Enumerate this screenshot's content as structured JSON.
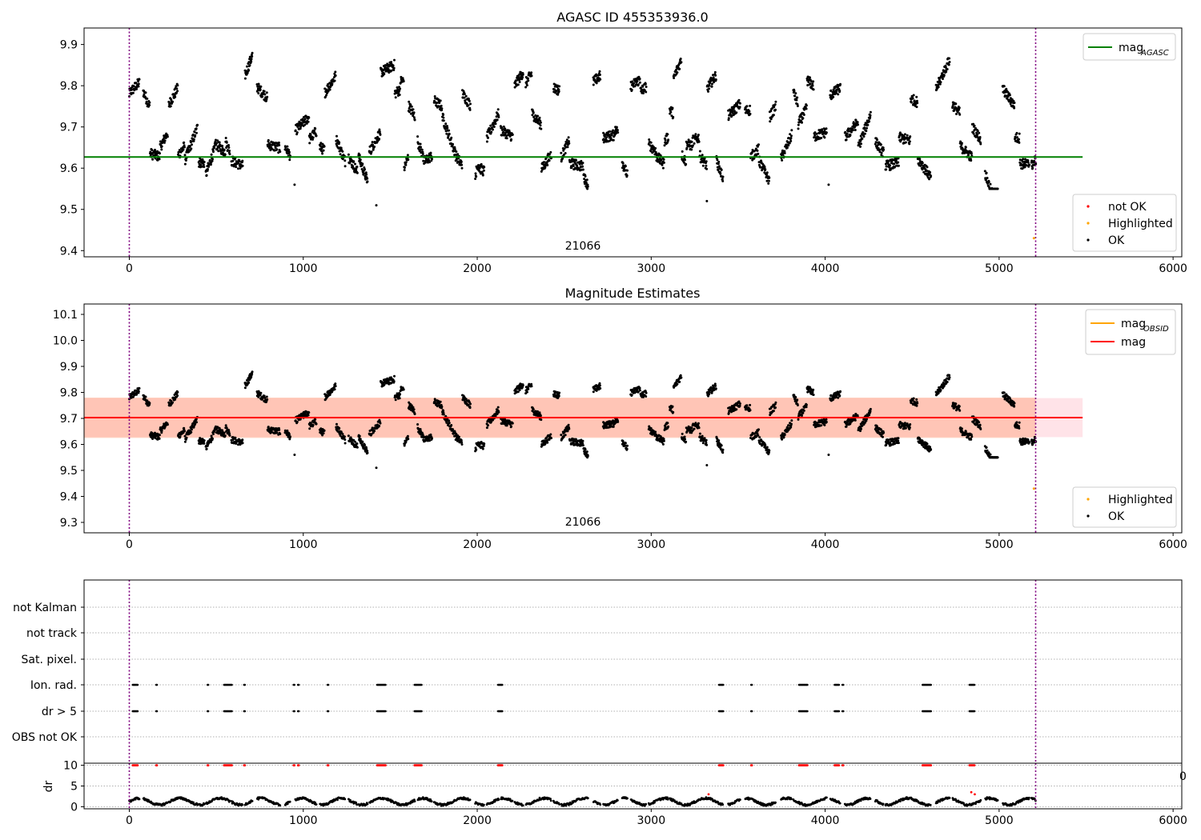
{
  "chart_data": [
    {
      "type": "scatter",
      "title": "AGASC ID 455353936.0",
      "xlabel": "",
      "ylabel": "",
      "xlim": [
        -260,
        6050
      ],
      "ylim": [
        9.385,
        9.94
      ],
      "xticks": [
        0,
        1000,
        2000,
        3000,
        4000,
        5000,
        6000
      ],
      "xtick_labels": [
        "0",
        "1000",
        "2000",
        "3000",
        "4000",
        "5000",
        "6000"
      ],
      "yticks": [
        9.4,
        9.5,
        9.6,
        9.7,
        9.8,
        9.9
      ],
      "ytick_labels": [
        "9.4",
        "9.5",
        "9.6",
        "9.7",
        "9.8",
        "9.9"
      ],
      "grid": false,
      "vertical_lines": [
        0,
        5210
      ],
      "lines": [
        {
          "name": "mag",
          "subscript": "AGASC",
          "color": "#008000",
          "y": 9.627,
          "x": [
            -260,
            5480
          ]
        }
      ],
      "band": null,
      "annotation": {
        "text": "21066",
        "x": 2600
      },
      "series": [
        {
          "name": "not OK",
          "color": "#ff0000",
          "points": []
        },
        {
          "name": "Highlighted",
          "color": "#ffa500",
          "points": [
            [
              5200,
              9.43
            ]
          ]
        },
        {
          "name": "OK",
          "color": "#000000",
          "y_range": [
            9.55,
            9.89
          ],
          "outliers": [
            [
              1420,
              9.51
            ],
            [
              3320,
              9.52
            ],
            [
              4020,
              9.56
            ],
            [
              950,
              9.56
            ]
          ]
        }
      ],
      "legend_lines": [
        {
          "label": "mag",
          "subscript": "AGASC",
          "color": "#008000"
        }
      ],
      "legend_points": [
        {
          "label": "not OK",
          "color": "#ff0000"
        },
        {
          "label": "Highlighted",
          "color": "#ffa500"
        },
        {
          "label": "OK",
          "color": "#000000"
        }
      ],
      "legend_lines_placement": "top-right",
      "legend_points_placement": "bottom-right"
    },
    {
      "type": "scatter",
      "title": "Magnitude Estimates",
      "xlabel": "",
      "ylabel": "",
      "xlim": [
        -260,
        6050
      ],
      "ylim": [
        9.26,
        10.14
      ],
      "xticks": [
        0,
        1000,
        2000,
        3000,
        4000,
        5000,
        6000
      ],
      "xtick_labels": [
        "0",
        "1000",
        "2000",
        "3000",
        "4000",
        "5000",
        "6000"
      ],
      "yticks": [
        9.3,
        9.4,
        9.5,
        9.6,
        9.7,
        9.8,
        9.9,
        10.0,
        10.1
      ],
      "ytick_labels": [
        "9.3",
        "9.4",
        "9.5",
        "9.6",
        "9.7",
        "9.8",
        "9.9",
        "10.0",
        "10.1"
      ],
      "grid": false,
      "vertical_lines": [
        0,
        5210
      ],
      "lines": [
        {
          "name": "mag",
          "color": "#ff0000",
          "y": 9.703,
          "x": [
            -260,
            5480
          ]
        }
      ],
      "bands": [
        {
          "color": "#ffa07a",
          "alpha": 0.45,
          "y": [
            9.625,
            9.78
          ],
          "x": [
            -260,
            5210
          ]
        },
        {
          "color": "#ffc0cb",
          "alpha": 0.45,
          "y": [
            9.628,
            9.778
          ],
          "x": [
            -260,
            5480
          ]
        }
      ],
      "annotation": {
        "text": "21066",
        "x": 2600
      },
      "series": [
        {
          "name": "Highlighted",
          "color": "#ffa500",
          "points": [
            [
              5200,
              9.43
            ]
          ]
        },
        {
          "name": "OK",
          "color": "#000000",
          "y_range": [
            9.55,
            9.89
          ],
          "outliers": [
            [
              1420,
              9.51
            ],
            [
              3320,
              9.52
            ],
            [
              4020,
              9.56
            ],
            [
              950,
              9.56
            ]
          ]
        }
      ],
      "legend_lines": [
        {
          "label": "mag",
          "subscript": "OBSID",
          "color": "#ffa500"
        },
        {
          "label": "mag",
          "subscript": "",
          "color": "#ff0000"
        }
      ],
      "legend_points": [
        {
          "label": "Highlighted",
          "color": "#ffa500"
        },
        {
          "label": "OK",
          "color": "#000000"
        }
      ],
      "legend_lines_placement": "top-right",
      "legend_points_placement": "bottom-right"
    },
    {
      "type": "scatter",
      "title": "",
      "xlabel": "",
      "ylabel": "",
      "xlim": [
        -260,
        6050
      ],
      "categories": [
        "not Kalman",
        "not track",
        "Sat. pixel.",
        "Ion. rad.",
        "dr > 5",
        "OBS not OK"
      ],
      "grid": "horizontal-dotted",
      "vertical_lines": [
        0,
        5210
      ],
      "flag_segments": {
        "Ion. rad.": [
          [
            20,
            50
          ],
          [
            155,
            160
          ],
          [
            450,
            455
          ],
          [
            545,
            590
          ],
          [
            660,
            665
          ],
          [
            945,
            950
          ],
          [
            970,
            975
          ],
          [
            1140,
            1145
          ],
          [
            1425,
            1475
          ],
          [
            1640,
            1680
          ],
          [
            2120,
            2145
          ],
          [
            3390,
            3415
          ],
          [
            3575,
            3580
          ],
          [
            3850,
            3900
          ],
          [
            4055,
            4080
          ],
          [
            4100,
            4105
          ],
          [
            4560,
            4610
          ],
          [
            4830,
            4860
          ]
        ],
        "dr > 5": [
          [
            20,
            50
          ],
          [
            155,
            160
          ],
          [
            450,
            455
          ],
          [
            545,
            590
          ],
          [
            660,
            665
          ],
          [
            945,
            950
          ],
          [
            970,
            975
          ],
          [
            1140,
            1145
          ],
          [
            1425,
            1475
          ],
          [
            1640,
            1680
          ],
          [
            2120,
            2145
          ],
          [
            3390,
            3415
          ],
          [
            3575,
            3580
          ],
          [
            3850,
            3900
          ],
          [
            4055,
            4080
          ],
          [
            4100,
            4105
          ],
          [
            4560,
            4610
          ],
          [
            4830,
            4860
          ]
        ]
      }
    },
    {
      "type": "scatter",
      "title": "",
      "xlabel": "",
      "ylabel": "dr",
      "xlim": [
        -260,
        6050
      ],
      "ylim": [
        -0.5,
        10.5
      ],
      "xticks": [
        0,
        1000,
        2000,
        3000,
        4000,
        5000,
        6000
      ],
      "xtick_labels": [
        "0",
        "1000",
        "2000",
        "3000",
        "4000",
        "5000",
        "6000"
      ],
      "yticks": [
        0,
        5,
        10
      ],
      "ytick_labels": [
        "0",
        "5",
        "10"
      ],
      "grid": "horizontal-dotted",
      "vertical_lines": [
        0,
        5210
      ],
      "stray_label": "0",
      "series": [
        {
          "name": "OK",
          "color": "#000000",
          "y_range": [
            0.2,
            2.6
          ]
        },
        {
          "name": "not OK",
          "color": "#ff0000",
          "capped_value": 10,
          "x_segments": [
            [
              20,
              50
            ],
            [
              155,
              160
            ],
            [
              450,
              455
            ],
            [
              545,
              590
            ],
            [
              660,
              665
            ],
            [
              945,
              950
            ],
            [
              970,
              975
            ],
            [
              1140,
              1145
            ],
            [
              1425,
              1475
            ],
            [
              1640,
              1680
            ],
            [
              2120,
              2145
            ],
            [
              3390,
              3415
            ],
            [
              3575,
              3580
            ],
            [
              3850,
              3900
            ],
            [
              4055,
              4080
            ],
            [
              4100,
              4105
            ],
            [
              4560,
              4610
            ],
            [
              4830,
              4860
            ]
          ],
          "extra_points": [
            [
              3330,
              3.0
            ],
            [
              4840,
              3.5
            ],
            [
              4860,
              3.0
            ]
          ]
        }
      ]
    }
  ]
}
